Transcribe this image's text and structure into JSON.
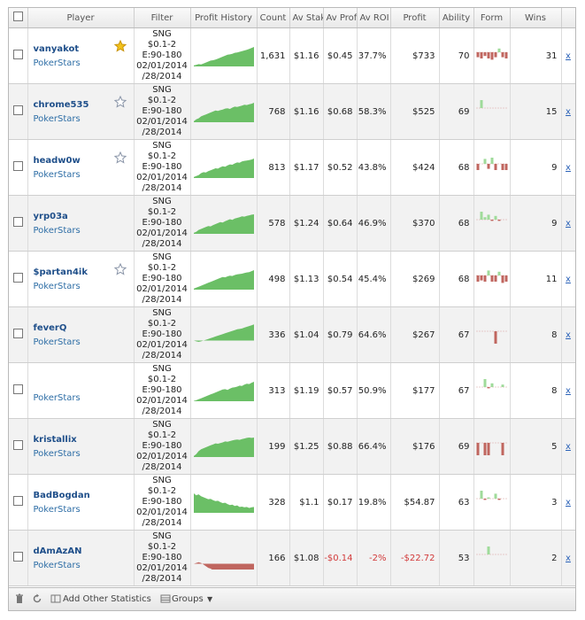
{
  "headers": {
    "player": "Player",
    "filter": "Filter",
    "profit_history": "Profit History",
    "count": "Count",
    "av_stake": "Av Stake",
    "av_profit": "Av Profit",
    "av_roi": "Av ROI",
    "profit": "Profit",
    "ability": "Ability",
    "form": "Form",
    "wins": "Wins"
  },
  "filter_lines": [
    "SNG",
    "$0.1-2",
    "E:90-180",
    "02/01/2014",
    "/28/2014"
  ],
  "rows": [
    {
      "name": "vanyakot",
      "site": "PokerStars",
      "star": "gold",
      "count": "1,631",
      "av_stake": "$1.16",
      "av_profit": "$0.45",
      "av_roi": "37.7%",
      "profit": "$733",
      "ability": "70",
      "wins": "31",
      "neg": false,
      "history": [
        0.05,
        0.08,
        0.12,
        0.1,
        0.15,
        0.2,
        0.25,
        0.3,
        0.32,
        0.35,
        0.4,
        0.45,
        0.5,
        0.55,
        0.6,
        0.62,
        0.65,
        0.7,
        0.72,
        0.75,
        0.78,
        0.82,
        0.85,
        0.9,
        0.95,
        1.0
      ],
      "form": [
        -0.4,
        -0.5,
        -0.3,
        -0.5,
        -0.6,
        -0.4,
        0.3,
        -0.4,
        -0.5
      ]
    },
    {
      "name": "chrome535",
      "site": "PokerStars",
      "star": "gray",
      "count": "768",
      "av_stake": "$1.16",
      "av_profit": "$0.68",
      "av_roi": "58.3%",
      "profit": "$525",
      "ability": "69",
      "wins": "15",
      "neg": false,
      "history": [
        0.05,
        0.15,
        0.2,
        0.3,
        0.35,
        0.4,
        0.45,
        0.5,
        0.55,
        0.6,
        0.58,
        0.62,
        0.65,
        0.7,
        0.72,
        0.68,
        0.75,
        0.8,
        0.78,
        0.82,
        0.85,
        0.9,
        0.88,
        0.92,
        0.95,
        1.0
      ],
      "form": [
        0,
        0.9,
        0,
        0,
        0,
        0,
        0,
        0,
        0
      ]
    },
    {
      "name": "headw0w",
      "site": "PokerStars",
      "star": "gray",
      "count": "813",
      "av_stake": "$1.17",
      "av_profit": "$0.52",
      "av_roi": "43.8%",
      "profit": "$424",
      "ability": "68",
      "wins": "9",
      "neg": false,
      "history": [
        0.05,
        0.1,
        0.15,
        0.25,
        0.3,
        0.28,
        0.35,
        0.4,
        0.45,
        0.5,
        0.48,
        0.55,
        0.6,
        0.58,
        0.65,
        0.7,
        0.68,
        0.75,
        0.8,
        0.78,
        0.85,
        0.88,
        0.9,
        0.92,
        0.95,
        1.0
      ],
      "form": [
        -0.5,
        0,
        0.4,
        -0.4,
        0.5,
        -0.5,
        0,
        -0.5,
        -0.5
      ]
    },
    {
      "name": "yrp03a",
      "site": "PokerStars",
      "star": "none",
      "count": "578",
      "av_stake": "$1.24",
      "av_profit": "$0.64",
      "av_roi": "46.9%",
      "profit": "$370",
      "ability": "68",
      "wins": "9",
      "neg": false,
      "history": [
        0.05,
        0.1,
        0.2,
        0.25,
        0.3,
        0.35,
        0.4,
        0.38,
        0.45,
        0.5,
        0.55,
        0.6,
        0.58,
        0.65,
        0.7,
        0.75,
        0.72,
        0.78,
        0.82,
        0.85,
        0.9,
        0.88,
        0.92,
        0.95,
        0.98,
        1.0
      ],
      "form": [
        0,
        0.8,
        0.2,
        0.4,
        -0.1,
        0.3,
        -0.1,
        0,
        0
      ]
    },
    {
      "name": "$partan4ik",
      "site": "PokerStars",
      "star": "gray",
      "count": "498",
      "av_stake": "$1.13",
      "av_profit": "$0.54",
      "av_roi": "45.4%",
      "profit": "$269",
      "ability": "68",
      "wins": "11",
      "neg": false,
      "history": [
        0.05,
        0.1,
        0.15,
        0.2,
        0.25,
        0.3,
        0.35,
        0.4,
        0.45,
        0.5,
        0.55,
        0.6,
        0.65,
        0.63,
        0.68,
        0.72,
        0.7,
        0.75,
        0.78,
        0.8,
        0.82,
        0.85,
        0.88,
        0.9,
        0.95,
        1.0
      ],
      "form": [
        -0.5,
        -0.4,
        -0.5,
        0.4,
        -0.5,
        -0.5,
        0.3,
        -0.6,
        -0.5
      ]
    },
    {
      "name": "feverQ",
      "site": "PokerStars",
      "star": "none",
      "count": "336",
      "av_stake": "$1.04",
      "av_profit": "$0.79",
      "av_roi": "64.6%",
      "profit": "$267",
      "ability": "67",
      "wins": "8",
      "neg": false,
      "history": [
        0.0,
        -0.05,
        -0.08,
        -0.05,
        0.0,
        0.05,
        0.1,
        0.15,
        0.2,
        0.25,
        0.3,
        0.35,
        0.4,
        0.45,
        0.5,
        0.55,
        0.6,
        0.65,
        0.7,
        0.72,
        0.75,
        0.8,
        0.85,
        0.9,
        0.95,
        1.0
      ],
      "form": [
        0,
        0,
        0,
        0,
        0,
        -1.0,
        0,
        0,
        0
      ]
    },
    {
      "name": "",
      "site": "PokerStars",
      "star": "none",
      "count": "313",
      "av_stake": "$1.19",
      "av_profit": "$0.57",
      "av_roi": "50.9%",
      "profit": "$177",
      "ability": "67",
      "wins": "8",
      "neg": false,
      "history": [
        0.02,
        0.05,
        0.1,
        0.15,
        0.2,
        0.25,
        0.3,
        0.35,
        0.4,
        0.45,
        0.5,
        0.55,
        0.6,
        0.62,
        0.58,
        0.65,
        0.7,
        0.72,
        0.75,
        0.8,
        0.78,
        0.85,
        0.9,
        0.88,
        0.95,
        1.0
      ],
      "form": [
        0,
        0,
        0.7,
        -0.1,
        0.3,
        0,
        0,
        0.2,
        0
      ]
    },
    {
      "name": "kristallix",
      "site": "PokerStars",
      "star": "none",
      "count": "199",
      "av_stake": "$1.25",
      "av_profit": "$0.88",
      "av_roi": "66.4%",
      "profit": "$176",
      "ability": "69",
      "wins": "5",
      "neg": false,
      "history": [
        0.05,
        0.15,
        0.3,
        0.4,
        0.45,
        0.5,
        0.55,
        0.6,
        0.65,
        0.7,
        0.68,
        0.72,
        0.75,
        0.8,
        0.78,
        0.82,
        0.85,
        0.88,
        0.9,
        0.88,
        0.92,
        0.95,
        0.98,
        1.0,
        0.98,
        1.0
      ],
      "form": [
        -1.0,
        0,
        -1.0,
        -1.0,
        0,
        0,
        0,
        -1.0,
        0
      ]
    },
    {
      "name": "BadBogdan",
      "site": "PokerStars",
      "star": "none",
      "count": "328",
      "av_stake": "$1.1",
      "av_profit": "$0.17",
      "av_roi": "19.8%",
      "profit": "$54.87",
      "ability": "63",
      "wins": "3",
      "neg": false,
      "history": [
        1.0,
        0.9,
        0.95,
        0.85,
        0.8,
        0.75,
        0.7,
        0.72,
        0.65,
        0.6,
        0.62,
        0.55,
        0.5,
        0.52,
        0.45,
        0.4,
        0.42,
        0.35,
        0.38,
        0.3,
        0.32,
        0.28,
        0.3,
        0.25,
        0.28,
        0.3
      ],
      "form": [
        0,
        0.8,
        -0.1,
        0.1,
        0,
        0.4,
        -0.1,
        0,
        0
      ]
    },
    {
      "name": "dAmAzAN",
      "site": "PokerStars",
      "star": "none",
      "count": "166",
      "av_stake": "$1.08",
      "av_profit": "-$0.14",
      "av_roi": "-2%",
      "profit": "-$22.72",
      "ability": "53",
      "wins": "2",
      "neg": true,
      "history": [
        0.0,
        0.05,
        0.1,
        0.05,
        -0.05,
        -0.15,
        -0.25,
        -0.3,
        -0.4,
        -0.45,
        -0.5,
        -0.55,
        -0.6,
        -0.65,
        -0.7,
        -0.75,
        -0.8,
        -0.85,
        -0.9,
        -0.85,
        -0.9,
        -0.95,
        -1.0,
        -0.95,
        -0.98,
        -1.0
      ],
      "form": [
        0,
        0,
        0,
        0.9,
        0,
        0,
        0,
        0,
        0
      ]
    }
  ],
  "wins_link": "x",
  "footer": {
    "add_stats": "Add Other Statistics",
    "groups": "Groups"
  },
  "colors": {
    "profit_green": "#6bbf66",
    "loss_red": "#c0665f",
    "form_green": "#9fdb9a",
    "form_red": "#c0665f"
  }
}
